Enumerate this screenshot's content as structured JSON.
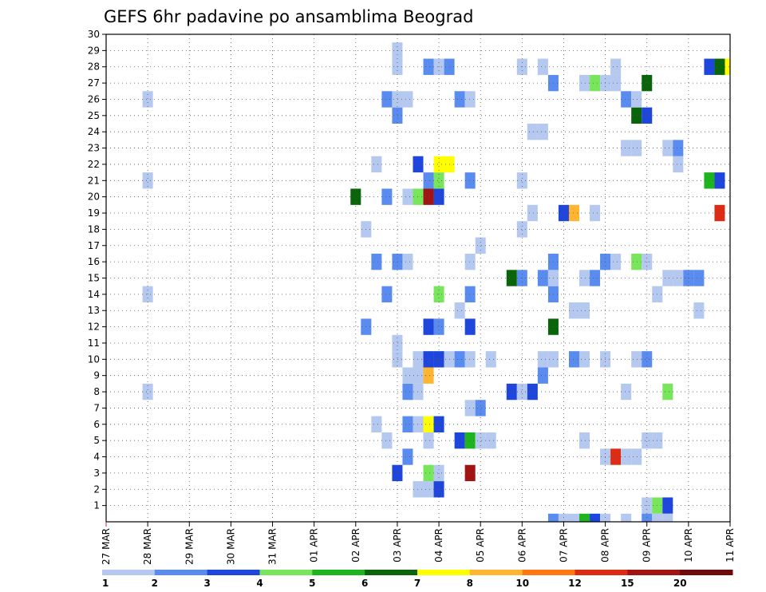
{
  "chart_data": {
    "type": "heatmap",
    "title": "GEFS 6hr padavine po ansamblima Beograd",
    "xlabel": "",
    "ylabel": "",
    "x_ticks": [
      "27 MAR",
      "28 MAR",
      "29 MAR",
      "30 MAR",
      "31 MAR",
      "01 APR",
      "02 APR",
      "03 APR",
      "04 APR",
      "05 APR",
      "06 APR",
      "07 APR",
      "08 APR",
      "09 APR",
      "10 APR",
      "11 APR"
    ],
    "y_ticks": [
      "1",
      "2",
      "3",
      "4",
      "5",
      "6",
      "7",
      "8",
      "9",
      "10",
      "11",
      "12",
      "13",
      "14",
      "15",
      "16",
      "17",
      "18",
      "19",
      "20",
      "21",
      "22",
      "23",
      "24",
      "25",
      "26",
      "27",
      "28",
      "29",
      "30"
    ],
    "x_range": [
      0,
      60
    ],
    "y_range": [
      0,
      30
    ],
    "x_step_hours": 6,
    "grid": true,
    "color_levels": [
      1,
      2,
      3,
      4,
      5,
      6,
      7,
      8,
      10,
      12,
      15,
      20
    ],
    "colorbar_labels": [
      "1",
      "2",
      "3",
      "4",
      "5",
      "6",
      "7",
      "8",
      "10",
      "12",
      "15",
      "20"
    ],
    "colors": [
      "#b4c8f0",
      "#5a8cf0",
      "#1e46dc",
      "#78e65a",
      "#1eb41e",
      "#0a640a",
      "#ffff00",
      "#ffb432",
      "#ff7814",
      "#dc2d14",
      "#a01414",
      "#6e0a0a"
    ],
    "cells": [
      {
        "m": 1,
        "x": 52,
        "c": 1
      },
      {
        "m": 1,
        "x": 53,
        "c": 4
      },
      {
        "m": 1,
        "x": 54,
        "c": 3
      },
      {
        "m": 2,
        "x": 30,
        "c": 1
      },
      {
        "m": 2,
        "x": 31,
        "c": 1
      },
      {
        "m": 2,
        "x": 32,
        "c": 3
      },
      {
        "m": 3,
        "x": 28,
        "c": 3
      },
      {
        "m": 3,
        "x": 31,
        "c": 4
      },
      {
        "m": 3,
        "x": 32,
        "c": 1
      },
      {
        "m": 3,
        "x": 35,
        "c": 11
      },
      {
        "m": 4,
        "x": 29,
        "c": 2
      },
      {
        "m": 4,
        "x": 48,
        "c": 1
      },
      {
        "m": 4,
        "x": 49,
        "c": 10
      },
      {
        "m": 4,
        "x": 50,
        "c": 1
      },
      {
        "m": 4,
        "x": 51,
        "c": 1
      },
      {
        "m": 5,
        "x": 27,
        "c": 1
      },
      {
        "m": 5,
        "x": 31,
        "c": 1
      },
      {
        "m": 5,
        "x": 34,
        "c": 3
      },
      {
        "m": 5,
        "x": 35,
        "c": 5
      },
      {
        "m": 5,
        "x": 36,
        "c": 1
      },
      {
        "m": 5,
        "x": 37,
        "c": 1
      },
      {
        "m": 5,
        "x": 46,
        "c": 1
      },
      {
        "m": 5,
        "x": 52,
        "c": 1
      },
      {
        "m": 5,
        "x": 53,
        "c": 1
      },
      {
        "m": 6,
        "x": 26,
        "c": 1
      },
      {
        "m": 6,
        "x": 29,
        "c": 2
      },
      {
        "m": 6,
        "x": 30,
        "c": 1
      },
      {
        "m": 6,
        "x": 31,
        "c": 7
      },
      {
        "m": 6,
        "x": 32,
        "c": 3
      },
      {
        "m": 7,
        "x": 35,
        "c": 1
      },
      {
        "m": 7,
        "x": 36,
        "c": 2
      },
      {
        "m": 8,
        "x": 4,
        "c": 1
      },
      {
        "m": 8,
        "x": 29,
        "c": 2
      },
      {
        "m": 8,
        "x": 30,
        "c": 1
      },
      {
        "m": 8,
        "x": 39,
        "c": 3
      },
      {
        "m": 8,
        "x": 40,
        "c": 1
      },
      {
        "m": 8,
        "x": 41,
        "c": 3
      },
      {
        "m": 8,
        "x": 50,
        "c": 1
      },
      {
        "m": 8,
        "x": 54,
        "c": 4
      },
      {
        "m": 9,
        "x": 29,
        "c": 1
      },
      {
        "m": 9,
        "x": 30,
        "c": 1
      },
      {
        "m": 9,
        "x": 31,
        "c": 8
      },
      {
        "m": 9,
        "x": 42,
        "c": 2
      },
      {
        "m": 10,
        "x": 28,
        "c": 1
      },
      {
        "m": 10,
        "x": 30,
        "c": 1
      },
      {
        "m": 10,
        "x": 31,
        "c": 3
      },
      {
        "m": 10,
        "x": 32,
        "c": 3
      },
      {
        "m": 10,
        "x": 33,
        "c": 1
      },
      {
        "m": 10,
        "x": 34,
        "c": 2
      },
      {
        "m": 10,
        "x": 35,
        "c": 1
      },
      {
        "m": 10,
        "x": 37,
        "c": 1
      },
      {
        "m": 10,
        "x": 42,
        "c": 1
      },
      {
        "m": 10,
        "x": 43,
        "c": 1
      },
      {
        "m": 10,
        "x": 45,
        "c": 2
      },
      {
        "m": 10,
        "x": 46,
        "c": 1
      },
      {
        "m": 10,
        "x": 48,
        "c": 1
      },
      {
        "m": 10,
        "x": 51,
        "c": 1
      },
      {
        "m": 10,
        "x": 52,
        "c": 2
      },
      {
        "m": 11,
        "x": 28,
        "c": 1
      },
      {
        "m": 12,
        "x": 25,
        "c": 2
      },
      {
        "m": 12,
        "x": 31,
        "c": 3
      },
      {
        "m": 12,
        "x": 32,
        "c": 2
      },
      {
        "m": 12,
        "x": 35,
        "c": 3
      },
      {
        "m": 12,
        "x": 43,
        "c": 6
      },
      {
        "m": 13,
        "x": 34,
        "c": 1
      },
      {
        "m": 13,
        "x": 45,
        "c": 1
      },
      {
        "m": 13,
        "x": 46,
        "c": 1
      },
      {
        "m": 13,
        "x": 57,
        "c": 1
      },
      {
        "m": 14,
        "x": 4,
        "c": 1
      },
      {
        "m": 14,
        "x": 27,
        "c": 2
      },
      {
        "m": 14,
        "x": 32,
        "c": 4
      },
      {
        "m": 14,
        "x": 35,
        "c": 2
      },
      {
        "m": 14,
        "x": 43,
        "c": 2
      },
      {
        "m": 14,
        "x": 53,
        "c": 1
      },
      {
        "m": 15,
        "x": 39,
        "c": 6
      },
      {
        "m": 15,
        "x": 40,
        "c": 2
      },
      {
        "m": 15,
        "x": 42,
        "c": 2
      },
      {
        "m": 15,
        "x": 43,
        "c": 1
      },
      {
        "m": 15,
        "x": 46,
        "c": 1
      },
      {
        "m": 15,
        "x": 47,
        "c": 2
      },
      {
        "m": 15,
        "x": 54,
        "c": 1
      },
      {
        "m": 15,
        "x": 55,
        "c": 1
      },
      {
        "m": 15,
        "x": 56,
        "c": 2
      },
      {
        "m": 15,
        "x": 57,
        "c": 2
      },
      {
        "m": 16,
        "x": 26,
        "c": 2
      },
      {
        "m": 16,
        "x": 28,
        "c": 2
      },
      {
        "m": 16,
        "x": 29,
        "c": 1
      },
      {
        "m": 16,
        "x": 35,
        "c": 1
      },
      {
        "m": 16,
        "x": 43,
        "c": 2
      },
      {
        "m": 16,
        "x": 48,
        "c": 2
      },
      {
        "m": 16,
        "x": 49,
        "c": 1
      },
      {
        "m": 16,
        "x": 51,
        "c": 4
      },
      {
        "m": 16,
        "x": 52,
        "c": 1
      },
      {
        "m": 17,
        "x": 36,
        "c": 1
      },
      {
        "m": 18,
        "x": 25,
        "c": 1
      },
      {
        "m": 18,
        "x": 40,
        "c": 1
      },
      {
        "m": 19,
        "x": 41,
        "c": 1
      },
      {
        "m": 19,
        "x": 44,
        "c": 3
      },
      {
        "m": 19,
        "x": 45,
        "c": 8
      },
      {
        "m": 19,
        "x": 47,
        "c": 1
      },
      {
        "m": 19,
        "x": 59,
        "c": 10
      },
      {
        "m": 20,
        "x": 24,
        "c": 6
      },
      {
        "m": 20,
        "x": 27,
        "c": 2
      },
      {
        "m": 20,
        "x": 29,
        "c": 1
      },
      {
        "m": 20,
        "x": 30,
        "c": 4
      },
      {
        "m": 20,
        "x": 31,
        "c": 11
      },
      {
        "m": 20,
        "x": 32,
        "c": 3
      },
      {
        "m": 21,
        "x": 4,
        "c": 1
      },
      {
        "m": 21,
        "x": 31,
        "c": 2
      },
      {
        "m": 21,
        "x": 32,
        "c": 4
      },
      {
        "m": 21,
        "x": 35,
        "c": 2
      },
      {
        "m": 21,
        "x": 40,
        "c": 1
      },
      {
        "m": 21,
        "x": 58,
        "c": 5
      },
      {
        "m": 21,
        "x": 59,
        "c": 3
      },
      {
        "m": 22,
        "x": 26,
        "c": 1
      },
      {
        "m": 22,
        "x": 30,
        "c": 3
      },
      {
        "m": 22,
        "x": 32,
        "c": 7
      },
      {
        "m": 22,
        "x": 33,
        "c": 7
      },
      {
        "m": 22,
        "x": 55,
        "c": 1
      },
      {
        "m": 23,
        "x": 50,
        "c": 1
      },
      {
        "m": 23,
        "x": 51,
        "c": 1
      },
      {
        "m": 23,
        "x": 54,
        "c": 1
      },
      {
        "m": 23,
        "x": 55,
        "c": 2
      },
      {
        "m": 24,
        "x": 41,
        "c": 1
      },
      {
        "m": 24,
        "x": 42,
        "c": 1
      },
      {
        "m": 25,
        "x": 28,
        "c": 2
      },
      {
        "m": 25,
        "x": 51,
        "c": 6
      },
      {
        "m": 25,
        "x": 52,
        "c": 3
      },
      {
        "m": 26,
        "x": 4,
        "c": 1
      },
      {
        "m": 26,
        "x": 27,
        "c": 2
      },
      {
        "m": 26,
        "x": 28,
        "c": 1
      },
      {
        "m": 26,
        "x": 29,
        "c": 1
      },
      {
        "m": 26,
        "x": 34,
        "c": 2
      },
      {
        "m": 26,
        "x": 35,
        "c": 1
      },
      {
        "m": 26,
        "x": 50,
        "c": 2
      },
      {
        "m": 26,
        "x": 51,
        "c": 1
      },
      {
        "m": 27,
        "x": 43,
        "c": 2
      },
      {
        "m": 27,
        "x": 46,
        "c": 1
      },
      {
        "m": 27,
        "x": 47,
        "c": 4
      },
      {
        "m": 27,
        "x": 48,
        "c": 1
      },
      {
        "m": 27,
        "x": 49,
        "c": 1
      },
      {
        "m": 27,
        "x": 52,
        "c": 6
      },
      {
        "m": 28,
        "x": 28,
        "c": 1
      },
      {
        "m": 28,
        "x": 31,
        "c": 2
      },
      {
        "m": 28,
        "x": 32,
        "c": 1
      },
      {
        "m": 28,
        "x": 33,
        "c": 2
      },
      {
        "m": 28,
        "x": 40,
        "c": 1
      },
      {
        "m": 28,
        "x": 42,
        "c": 1
      },
      {
        "m": 28,
        "x": 49,
        "c": 1
      },
      {
        "m": 28,
        "x": 58,
        "c": 3
      },
      {
        "m": 28,
        "x": 59,
        "c": 6
      },
      {
        "m": 28,
        "x": 60,
        "c": 7
      },
      {
        "m": 29,
        "x": 28,
        "c": 1
      },
      {
        "m": 0,
        "x": 43,
        "c": 2
      },
      {
        "m": 0,
        "x": 44,
        "c": 1
      },
      {
        "m": 0,
        "x": 45,
        "c": 1
      },
      {
        "m": 0,
        "x": 46,
        "c": 5
      },
      {
        "m": 0,
        "x": 47,
        "c": 3
      },
      {
        "m": 0,
        "x": 48,
        "c": 1
      },
      {
        "m": 0,
        "x": 50,
        "c": 1
      },
      {
        "m": 0,
        "x": 52,
        "c": 2
      },
      {
        "m": 0,
        "x": 53,
        "c": 1
      },
      {
        "m": 0,
        "x": 54,
        "c": 1
      }
    ]
  }
}
